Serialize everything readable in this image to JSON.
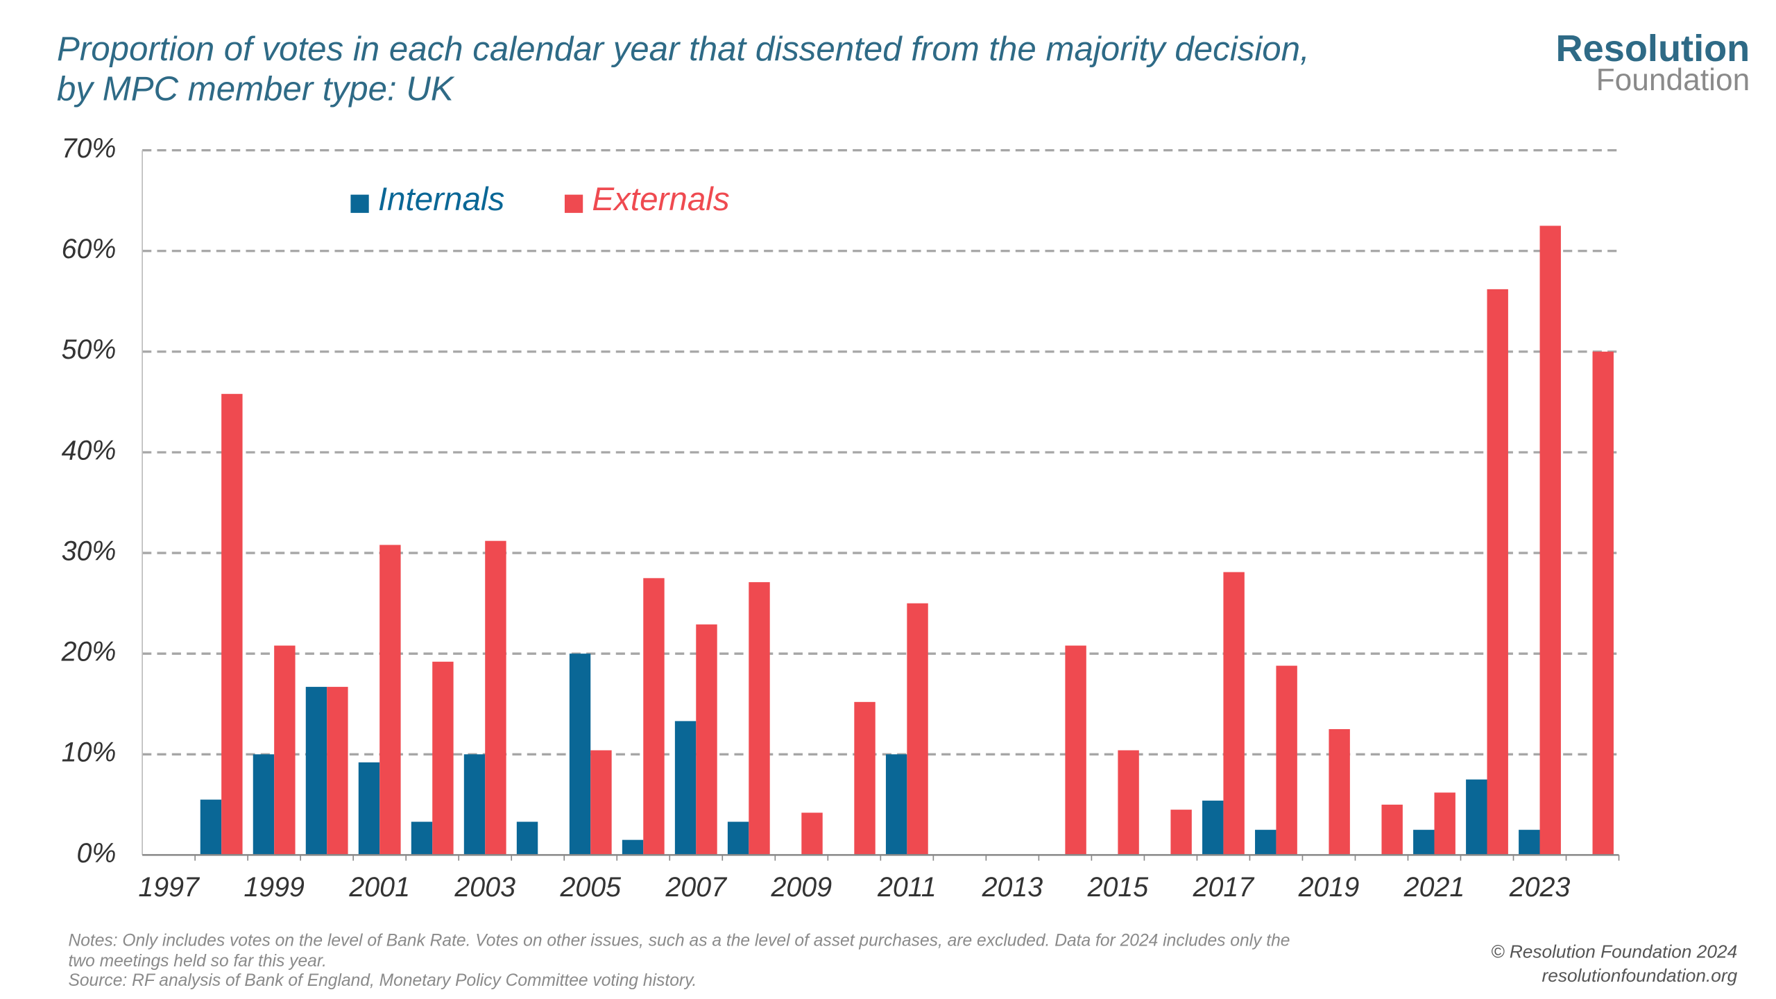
{
  "chart_data": {
    "type": "bar",
    "title": [
      "Proportion of votes in each calendar year that dissented from the majority decision,",
      "by MPC member type: UK"
    ],
    "logo": [
      "Resolution",
      "Foundation"
    ],
    "notes": [
      "Notes: Only includes votes on the level of Bank Rate. Votes on other issues, such as a the level of asset purchases, are excluded. Data for 2024 includes only the",
      "two meetings held so far this year.",
      "Source: RF analysis of Bank of England, Monetary Policy Committee voting history."
    ],
    "credit": [
      "© Resolution Foundation 2024",
      "resolutionfoundation.org"
    ],
    "categories": [
      "1997",
      null,
      "1999",
      null,
      "2001",
      null,
      "2003",
      null,
      "2005",
      null,
      "2007",
      null,
      "2009",
      null,
      "2011",
      null,
      "2013",
      null,
      "2015",
      null,
      "2017",
      null,
      "2019",
      null,
      "2021",
      null,
      "2023",
      null
    ],
    "series": [
      {
        "name": "Internals",
        "color": "#0a6796",
        "values": [
          0,
          5.5,
          10,
          16.7,
          9.2,
          3.3,
          10,
          3.3,
          20,
          1.5,
          13.3,
          3.3,
          0,
          0,
          10,
          0,
          0,
          0,
          0,
          0,
          5.4,
          2.5,
          0,
          0,
          2.5,
          7.5,
          2.5,
          0
        ]
      },
      {
        "name": "Externals",
        "color": "#ef4a50",
        "values": [
          0,
          45.8,
          20.8,
          16.7,
          30.8,
          19.2,
          31.2,
          0,
          10.4,
          27.5,
          22.9,
          27.1,
          4.2,
          15.2,
          25,
          0,
          0,
          20.8,
          10.4,
          4.5,
          28.1,
          18.8,
          12.5,
          5,
          6.2,
          56.2,
          62.5,
          50
        ]
      }
    ],
    "ylim": [
      0,
      70
    ],
    "yticks": [
      {
        "value": 0,
        "label": "0%"
      },
      {
        "value": 10,
        "label": "10%"
      },
      {
        "value": 20,
        "label": "20%"
      },
      {
        "value": 30,
        "label": "30%"
      },
      {
        "value": 40,
        "label": "40%"
      },
      {
        "value": 50,
        "label": "50%"
      },
      {
        "value": 60,
        "label": "60%"
      },
      {
        "value": 70,
        "label": "70%"
      }
    ],
    "grid": true,
    "legend": "top-left"
  }
}
